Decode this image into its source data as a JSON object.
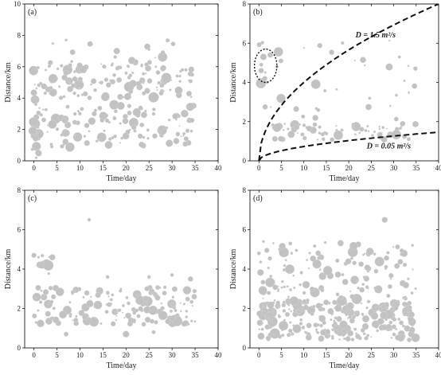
{
  "chart_data": [
    {
      "type": "scatter",
      "panel_label": "(a)",
      "xlabel": "Time/day",
      "ylabel": "Distance/km",
      "xlim": [
        -2,
        40
      ],
      "ylim": [
        0,
        10
      ],
      "xticks": [
        "0",
        "5",
        "10",
        "15",
        "20",
        "25",
        "30",
        "35",
        "40"
      ],
      "yticks": [
        "0",
        "2",
        "4",
        "6",
        "8",
        "10"
      ],
      "marker_color": "#c2c2c2",
      "point_groups": [
        {
          "x_range": [
            0,
            35
          ],
          "y_range": [
            4.0,
            6.3
          ],
          "count": 140
        },
        {
          "x_range": [
            0,
            35
          ],
          "y_range": [
            0.8,
            3.6
          ],
          "count": 130
        },
        {
          "x_range": [
            -0.5,
            1.2
          ],
          "y_range": [
            0,
            6
          ],
          "count": 30
        },
        {
          "x_range": [
            3,
            33
          ],
          "y_range": [
            6.3,
            7.8
          ],
          "count": 14
        }
      ],
      "points": [
        [
          7,
          7.7
        ],
        [
          18,
          7.0
        ],
        [
          25,
          7.1
        ],
        [
          28,
          6.9
        ],
        [
          33,
          5.8
        ],
        [
          0.5,
          0.2
        ],
        [
          1,
          0.5
        ]
      ]
    },
    {
      "type": "scatter",
      "panel_label": "(b)",
      "xlabel": "Time/day",
      "ylabel": "Distance/km",
      "xlim": [
        -2,
        40
      ],
      "ylim": [
        0,
        8
      ],
      "xticks": [
        "0",
        "5",
        "10",
        "15",
        "20",
        "25",
        "30",
        "35",
        "40"
      ],
      "yticks": [
        "0",
        "2",
        "4",
        "6",
        "8"
      ],
      "marker_color": "#c2c2c2",
      "point_groups": [
        {
          "x_range": [
            3,
            35
          ],
          "y_range": [
            1.0,
            1.9
          ],
          "count": 70
        },
        {
          "x_range": [
            0,
            35
          ],
          "y_range": [
            2,
            6.3
          ],
          "count": 40
        }
      ],
      "points": [
        [
          0.5,
          4.9
        ],
        [
          1,
          5.3
        ],
        [
          1.3,
          4.2
        ],
        [
          1.8,
          4.0
        ],
        [
          0.5,
          4.6
        ],
        [
          2.5,
          5.4
        ]
      ],
      "curves": [
        {
          "label": "D = 1.5 m²/s",
          "formula": "y = 1.265*sqrt(x)",
          "style": "dashed"
        },
        {
          "label": "D = 0.05 m²/s",
          "formula": "y = 0.231*sqrt(x)",
          "style": "dashed"
        }
      ],
      "ellipse_annotation": {
        "center": [
          1.5,
          4.85
        ],
        "rx_days": 2.5,
        "ry_km": 0.85,
        "style": "dotted"
      }
    },
    {
      "type": "scatter",
      "panel_label": "(c)",
      "xlabel": "Time/day",
      "ylabel": "Distance/km",
      "xlim": [
        -2,
        40
      ],
      "ylim": [
        0,
        8
      ],
      "xticks": [
        "0",
        "5",
        "10",
        "15",
        "20",
        "25",
        "30",
        "35",
        "40"
      ],
      "yticks": [
        "0",
        "2",
        "4",
        "6",
        "8"
      ],
      "marker_color": "#c2c2c2",
      "point_groups": [
        {
          "x_range": [
            0,
            35
          ],
          "y_range": [
            1.2,
            3.1
          ],
          "count": 170
        },
        {
          "x_range": [
            -0.3,
            4
          ],
          "y_range": [
            3.7,
            4.7
          ],
          "count": 10
        }
      ],
      "points": [
        [
          12,
          6.5
        ],
        [
          0,
          4.7
        ],
        [
          1,
          4.6
        ],
        [
          4,
          4.6
        ],
        [
          16,
          3.6
        ],
        [
          25,
          3.6
        ],
        [
          30,
          3.7
        ],
        [
          34,
          3.5
        ],
        [
          7,
          0.7
        ],
        [
          20,
          0.7
        ],
        [
          26,
          0.8
        ]
      ]
    },
    {
      "type": "scatter",
      "panel_label": "(d)",
      "xlabel": "Time/day",
      "ylabel": "Distance/km",
      "xlim": [
        -2,
        40
      ],
      "ylim": [
        0,
        8
      ],
      "xticks": [
        "0",
        "5",
        "10",
        "15",
        "20",
        "25",
        "30",
        "35",
        "40"
      ],
      "yticks": [
        "0",
        "2",
        "4",
        "6",
        "8"
      ],
      "marker_color": "#c2c2c2",
      "point_groups": [
        {
          "x_range": [
            0,
            35
          ],
          "y_range": [
            0.4,
            2.4
          ],
          "count": 280
        },
        {
          "x_range": [
            0,
            35
          ],
          "y_range": [
            2.4,
            5.4
          ],
          "count": 130
        }
      ],
      "points": [
        [
          28,
          6.5
        ],
        [
          1,
          5.4
        ],
        [
          7,
          5.3
        ],
        [
          0,
          4.8
        ]
      ]
    }
  ]
}
